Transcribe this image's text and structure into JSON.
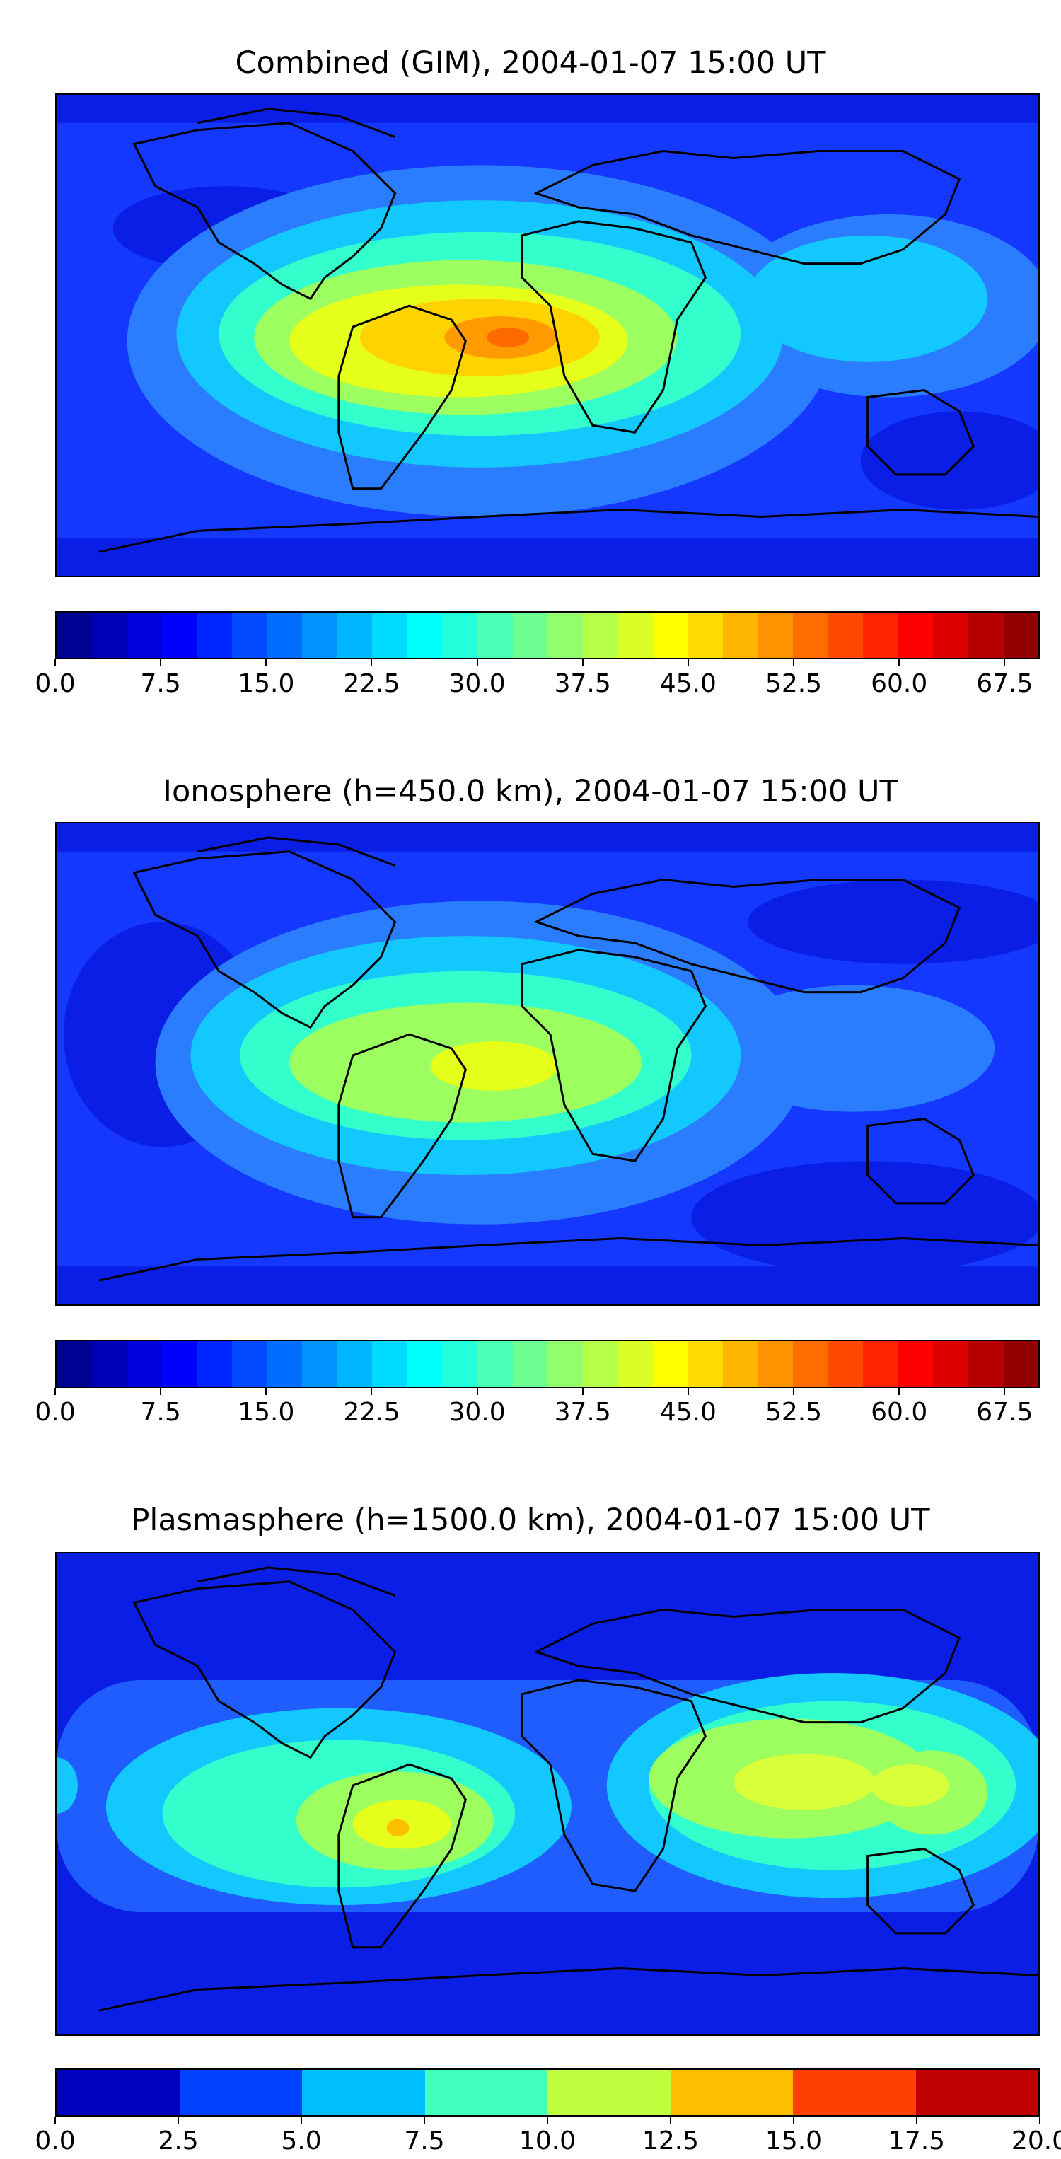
{
  "panels": [
    {
      "title": "Combined (GIM), 2004-01-07 15:00 UT",
      "colorbar": {
        "min": 0.0,
        "max": 70.0,
        "segments": 28,
        "tick_labels": [
          "0.0",
          "7.5",
          "15.0",
          "22.5",
          "30.0",
          "37.5",
          "45.0",
          "52.5",
          "60.0",
          "67.5"
        ],
        "tick_values": [
          0.0,
          7.5,
          15.0,
          22.5,
          30.0,
          37.5,
          45.0,
          52.5,
          60.0,
          67.5
        ]
      }
    },
    {
      "title": "Ionosphere  (h=450.0 km), 2004-01-07 15:00 UT",
      "colorbar": {
        "min": 0.0,
        "max": 70.0,
        "segments": 28,
        "tick_labels": [
          "0.0",
          "7.5",
          "15.0",
          "22.5",
          "30.0",
          "37.5",
          "45.0",
          "52.5",
          "60.0",
          "67.5"
        ],
        "tick_values": [
          0.0,
          7.5,
          15.0,
          22.5,
          30.0,
          37.5,
          45.0,
          52.5,
          60.0,
          67.5
        ]
      }
    },
    {
      "title": "Plasmasphere (h=1500.0 km), 2004-01-07 15:00 UT",
      "colorbar": {
        "min": 0.0,
        "max": 20.0,
        "segments": 8,
        "tick_labels": [
          "0.0",
          "2.5",
          "5.0",
          "7.5",
          "10.0",
          "12.5",
          "15.0",
          "17.5",
          "20.0"
        ],
        "tick_values": [
          0.0,
          2.5,
          5.0,
          7.5,
          10.0,
          12.5,
          15.0,
          17.5,
          20.0
        ]
      }
    }
  ],
  "colormap": "jet"
}
